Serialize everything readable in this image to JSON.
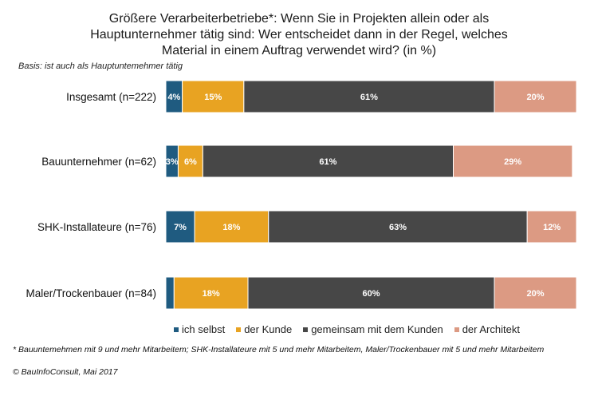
{
  "chart_data": {
    "type": "bar",
    "orientation": "horizontal",
    "stacked": true,
    "title_lines": [
      "Größere Verarbeiterbetriebe*:  Wenn Sie in Projekten allein oder als",
      "Hauptunternehmer  tätig sind: Wer entscheidet dann in der Regel, welches",
      "Material in einem Auftrag verwendet wird? (in %)"
    ],
    "subtitle": "Basis: ist auch als Hauptuntemehmer tätig",
    "categories": [
      "Insgesamt (n=222)",
      "Bauunternehmer (n=62)",
      "SHK-Installateure (n=76)",
      "Maler/Trockenbauer (n=84)"
    ],
    "series": [
      {
        "name": "ich selbst",
        "color": "#1f5b80",
        "values": [
          4,
          3,
          7,
          2
        ],
        "labels": [
          "4%",
          "3%",
          "7%",
          ""
        ]
      },
      {
        "name": "der Kunde",
        "color": "#e8a322",
        "values": [
          15,
          6,
          18,
          18
        ],
        "labels": [
          "15%",
          "6%",
          "18%",
          "18%"
        ]
      },
      {
        "name": "gemeinsam mit dem Kunden",
        "color": "#474747",
        "values": [
          61,
          61,
          63,
          60
        ],
        "labels": [
          "61%",
          "61%",
          "63%",
          "60%"
        ]
      },
      {
        "name": "der Architekt",
        "color": "#dc9a83",
        "values": [
          20,
          29,
          12,
          20
        ],
        "labels": [
          "20%",
          "29%",
          "12%",
          "20%"
        ]
      }
    ],
    "xlim": [
      0,
      100
    ],
    "xlabel": "",
    "ylabel": "",
    "grid": false,
    "legend_position": "bottom"
  },
  "footnote": "* Bauuntemehmen mit 9 und mehr Mitarbeitem; SHK-Installateure mit 5 und mehr Mitarbeitem, Maler/Trockenbauer mit 5 und mehr Mitarbeitem",
  "copyright": "© BauInfoConsult, Mai 2017"
}
